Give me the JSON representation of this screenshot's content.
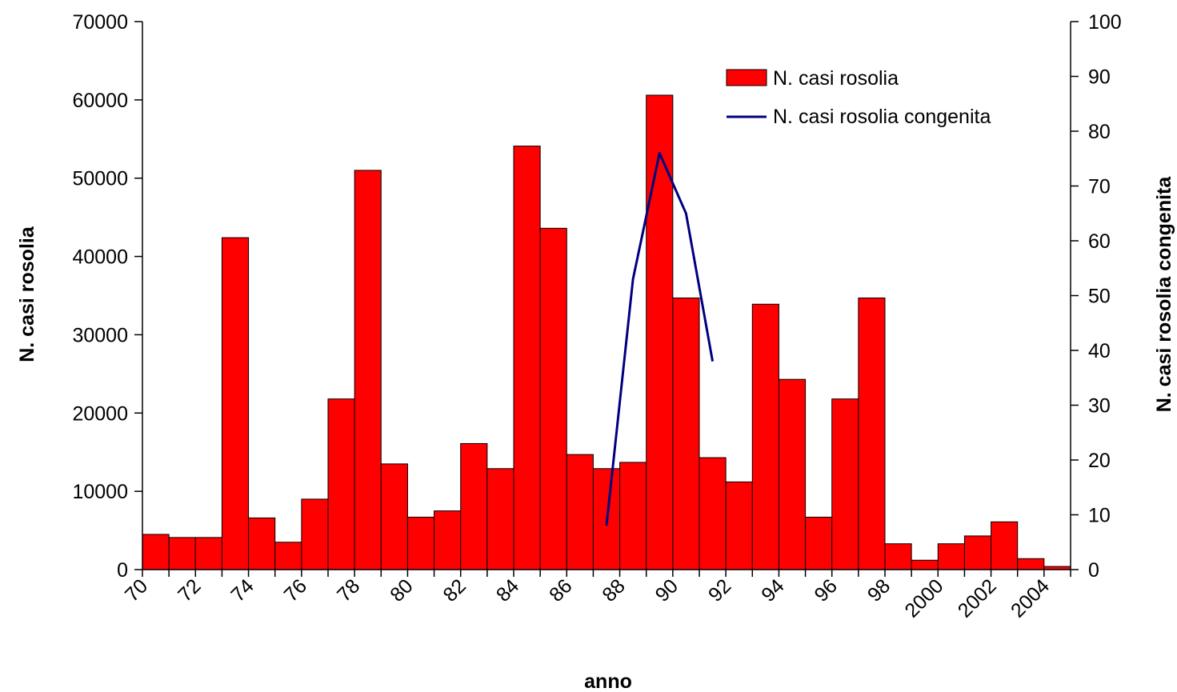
{
  "chart_data": {
    "type": "bar",
    "categories": [
      "70",
      "71",
      "72",
      "73",
      "74",
      "75",
      "76",
      "77",
      "78",
      "79",
      "80",
      "81",
      "82",
      "83",
      "84",
      "85",
      "86",
      "87",
      "88",
      "89",
      "90",
      "91",
      "92",
      "93",
      "94",
      "95",
      "96",
      "97",
      "98",
      "99",
      "2000",
      "2001",
      "2002",
      "2003",
      "2004"
    ],
    "x_tick_labels": [
      "70",
      "72",
      "74",
      "76",
      "78",
      "80",
      "82",
      "84",
      "86",
      "88",
      "90",
      "92",
      "94",
      "96",
      "98",
      "2000",
      "2002",
      "2004"
    ],
    "series": [
      {
        "name": "N. casi rosolia",
        "type": "bar",
        "axis": "left",
        "color": "#ff0000",
        "values": [
          4500,
          4100,
          4100,
          42400,
          6600,
          3500,
          9000,
          21800,
          51000,
          13500,
          6700,
          7500,
          16100,
          12900,
          54100,
          43600,
          14700,
          12900,
          13700,
          60600,
          34700,
          14300,
          11200,
          33900,
          24300,
          6700,
          21800,
          34700,
          3300,
          1200,
          3300,
          4300,
          6100,
          1400,
          400
        ]
      },
      {
        "name": "N. casi rosolia congenita",
        "type": "line",
        "axis": "right",
        "color": "#000080",
        "x": [
          "87",
          "88",
          "89",
          "90",
          "91"
        ],
        "values": [
          8,
          53,
          76,
          65,
          38
        ]
      }
    ],
    "xlabel": "anno",
    "ylabel": "N. casi rosolia",
    "y2label": "N. casi rosolia congenita",
    "ylim": [
      0,
      70000
    ],
    "y_ticks": [
      "0",
      "10000",
      "20000",
      "30000",
      "40000",
      "50000",
      "60000",
      "70000"
    ],
    "y2lim": [
      0,
      100
    ],
    "y2_ticks": [
      "0",
      "10",
      "20",
      "30",
      "40",
      "50",
      "60",
      "70",
      "80",
      "90",
      "100"
    ],
    "legend_position": "top-right",
    "grid": false
  }
}
